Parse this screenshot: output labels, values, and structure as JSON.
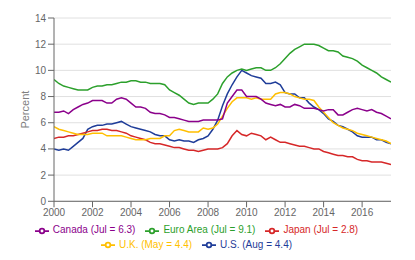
{
  "chart_data": {
    "type": "line",
    "ylabel": "Percent",
    "x": [
      2000,
      2000.25,
      2000.5,
      2000.75,
      2001,
      2001.25,
      2001.5,
      2001.75,
      2002,
      2002.25,
      2002.5,
      2002.75,
      2003,
      2003.25,
      2003.5,
      2003.75,
      2004,
      2004.25,
      2004.5,
      2004.75,
      2005,
      2005.25,
      2005.5,
      2005.75,
      2006,
      2006.25,
      2006.5,
      2006.75,
      2007,
      2007.25,
      2007.5,
      2007.75,
      2008,
      2008.25,
      2008.5,
      2008.75,
      2009,
      2009.25,
      2009.5,
      2009.75,
      2010,
      2010.25,
      2010.5,
      2010.75,
      2011,
      2011.25,
      2011.5,
      2011.75,
      2012,
      2012.25,
      2012.5,
      2012.75,
      2013,
      2013.25,
      2013.5,
      2013.75,
      2014,
      2014.25,
      2014.5,
      2014.75,
      2015,
      2015.25,
      2015.5,
      2015.75,
      2016,
      2016.25,
      2016.5,
      2016.75,
      2017,
      2017.25,
      2017.5
    ],
    "series": [
      {
        "name": "U.S. (Aug = 4.4)",
        "color": "#1f3d99",
        "values": [
          4.0,
          3.9,
          4.0,
          3.9,
          4.2,
          4.5,
          4.8,
          5.5,
          5.7,
          5.8,
          5.8,
          5.9,
          5.9,
          6.0,
          6.1,
          5.9,
          5.7,
          5.6,
          5.5,
          5.4,
          5.3,
          5.1,
          5.0,
          5.0,
          4.7,
          4.6,
          4.7,
          4.6,
          4.6,
          4.5,
          4.7,
          4.8,
          5.0,
          5.5,
          6.2,
          7.3,
          8.2,
          8.9,
          9.5,
          10.0,
          9.8,
          9.6,
          9.5,
          9.4,
          9.0,
          9.0,
          9.1,
          8.9,
          8.3,
          8.2,
          8.2,
          7.9,
          7.9,
          7.5,
          7.2,
          7.0,
          6.7,
          6.3,
          6.1,
          5.8,
          5.7,
          5.5,
          5.3,
          5.0,
          4.9,
          4.9,
          4.9,
          4.7,
          4.7,
          4.5,
          4.4
        ]
      },
      {
        "name": "Euro Area (Jul = 9.1)",
        "color": "#2ca02c",
        "values": [
          9.3,
          9.0,
          8.8,
          8.7,
          8.6,
          8.5,
          8.5,
          8.5,
          8.7,
          8.8,
          8.8,
          8.9,
          8.9,
          9.0,
          9.1,
          9.1,
          9.2,
          9.2,
          9.1,
          9.1,
          9.0,
          9.0,
          9.0,
          8.9,
          8.5,
          8.3,
          8.1,
          7.8,
          7.5,
          7.4,
          7.5,
          7.5,
          7.5,
          7.8,
          8.2,
          9.0,
          9.5,
          9.8,
          10.0,
          10.1,
          10.0,
          10.1,
          10.2,
          10.2,
          10.0,
          10.0,
          10.2,
          10.5,
          10.9,
          11.3,
          11.6,
          11.8,
          12.0,
          12.0,
          12.0,
          11.9,
          11.7,
          11.5,
          11.5,
          11.4,
          11.1,
          11.0,
          10.9,
          10.7,
          10.4,
          10.2,
          10.0,
          9.8,
          9.5,
          9.3,
          9.1
        ]
      },
      {
        "name": "Japan (Jul = 2.8)",
        "color": "#d62728",
        "values": [
          4.8,
          4.9,
          4.9,
          5.0,
          5.0,
          5.1,
          5.2,
          5.3,
          5.4,
          5.4,
          5.5,
          5.5,
          5.4,
          5.4,
          5.3,
          5.2,
          5.0,
          4.9,
          4.8,
          4.7,
          4.5,
          4.4,
          4.4,
          4.3,
          4.2,
          4.1,
          4.1,
          4.0,
          3.9,
          3.9,
          3.8,
          3.9,
          4.0,
          4.0,
          4.0,
          4.1,
          4.4,
          5.0,
          5.4,
          5.1,
          5.0,
          5.2,
          5.1,
          5.0,
          4.7,
          4.9,
          4.7,
          4.5,
          4.5,
          4.4,
          4.3,
          4.2,
          4.2,
          4.1,
          4.0,
          4.0,
          3.8,
          3.7,
          3.6,
          3.5,
          3.5,
          3.4,
          3.4,
          3.2,
          3.1,
          3.1,
          3.0,
          3.0,
          3.0,
          2.9,
          2.8
        ]
      },
      {
        "name": "U.K. (May = 4.4)",
        "color": "#ffbf00",
        "values": [
          5.7,
          5.5,
          5.4,
          5.3,
          5.2,
          5.1,
          5.1,
          5.1,
          5.2,
          5.2,
          5.2,
          5.0,
          5.0,
          5.0,
          5.0,
          4.9,
          4.8,
          4.7,
          4.7,
          4.7,
          4.8,
          4.8,
          4.8,
          5.0,
          5.0,
          5.4,
          5.5,
          5.4,
          5.3,
          5.3,
          5.3,
          5.6,
          5.5,
          5.6,
          5.9,
          6.5,
          7.1,
          7.6,
          7.9,
          7.9,
          7.9,
          7.8,
          7.9,
          7.8,
          7.8,
          7.8,
          8.2,
          8.3,
          8.3,
          8.2,
          8.0,
          7.9,
          7.8,
          7.8,
          7.7,
          7.2,
          6.8,
          6.4,
          6.0,
          5.8,
          5.6,
          5.5,
          5.4,
          5.2,
          5.1,
          5.0,
          4.9,
          4.8,
          4.7,
          4.6,
          4.4
        ]
      },
      {
        "name": "Canada (Jul = 6.3)",
        "color": "#8B008B",
        "values": [
          6.8,
          6.8,
          6.9,
          6.7,
          7.0,
          7.2,
          7.4,
          7.5,
          7.7,
          7.7,
          7.7,
          7.5,
          7.5,
          7.8,
          7.9,
          7.8,
          7.5,
          7.2,
          7.2,
          7.1,
          6.8,
          6.7,
          6.7,
          6.6,
          6.4,
          6.4,
          6.3,
          6.2,
          6.1,
          6.1,
          6.1,
          6.2,
          6.2,
          6.2,
          6.2,
          6.3,
          7.5,
          8.0,
          8.5,
          8.5,
          8.0,
          8.0,
          8.0,
          7.8,
          7.5,
          7.4,
          7.3,
          7.4,
          7.2,
          7.2,
          7.4,
          7.3,
          7.1,
          7.1,
          7.1,
          7.0,
          6.9,
          7.0,
          7.0,
          6.6,
          6.6,
          6.8,
          7.0,
          7.1,
          7.0,
          6.9,
          7.0,
          6.8,
          6.7,
          6.5,
          6.3
        ]
      }
    ],
    "xlim": [
      2000,
      2017.5
    ],
    "xticks": [
      2000,
      2002,
      2004,
      2006,
      2008,
      2010,
      2012,
      2014,
      2016
    ],
    "ylim": [
      0,
      14
    ],
    "yticks": [
      0,
      2,
      4,
      6,
      8,
      10,
      12,
      14
    ],
    "grid": true,
    "legend": "bottom"
  }
}
